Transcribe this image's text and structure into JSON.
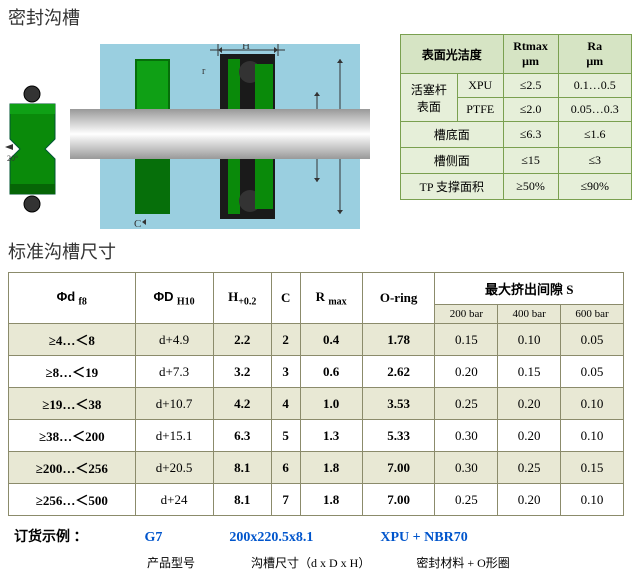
{
  "titles": {
    "groove": "密封沟槽",
    "std": "标准沟槽尺寸",
    "order": "订货示例 ："
  },
  "surface": {
    "head": [
      "表面光洁度",
      "Rtmax\nμm",
      "Ra\nμm"
    ],
    "rowspan_label": "活塞杆\n表面",
    "rows": [
      [
        "XPU",
        "≤2.5",
        "0.1…0.5"
      ],
      [
        "PTFE",
        "≤2.0",
        "0.05…0.3"
      ],
      [
        "槽底面",
        "≤6.3",
        "≤1.6"
      ],
      [
        "槽侧面",
        "≤15",
        "≤3"
      ],
      [
        "TP 支撑面积",
        "≥50%",
        "≤90%"
      ]
    ]
  },
  "main": {
    "head": [
      "Φd f8",
      "ΦD H10",
      "H+0.2",
      "C",
      "R max",
      "O-ring",
      "最大挤出间隙 S"
    ],
    "sub": [
      "200 bar",
      "400 bar",
      "600 bar"
    ],
    "rows": [
      [
        "≥4…＜8",
        "d+4.9",
        "2.2",
        "2",
        "0.4",
        "1.78",
        "0.15",
        "0.10",
        "0.05"
      ],
      [
        "≥8…＜19",
        "d+7.3",
        "3.2",
        "3",
        "0.6",
        "2.62",
        "0.20",
        "0.15",
        "0.05"
      ],
      [
        "≥19…＜38",
        "d+10.7",
        "4.2",
        "4",
        "1.0",
        "3.53",
        "0.25",
        "0.20",
        "0.10"
      ],
      [
        "≥38…＜200",
        "d+15.1",
        "6.3",
        "5",
        "1.3",
        "5.33",
        "0.30",
        "0.20",
        "0.10"
      ],
      [
        "≥200…＜256",
        "d+20.5",
        "8.1",
        "6",
        "1.8",
        "7.00",
        "0.30",
        "0.25",
        "0.15"
      ],
      [
        "≥256…＜500",
        "d+24",
        "8.1",
        "7",
        "1.8",
        "7.00",
        "0.25",
        "0.20",
        "0.10"
      ]
    ]
  },
  "order": {
    "model": "G7",
    "dim": "200x220.5x8.1",
    "mat": "XPU + NBR70",
    "sub1": "产品型号",
    "sub2": "沟槽尺寸（d x D x H）",
    "sub3": "密封材料 + O形圈"
  },
  "colors": {
    "green_l": "#e6efd9",
    "green_d": "#d6e4c4",
    "olive": "#e8e8d4",
    "cyan": "#9acfe0",
    "seal_g": "#0a8a0a"
  }
}
